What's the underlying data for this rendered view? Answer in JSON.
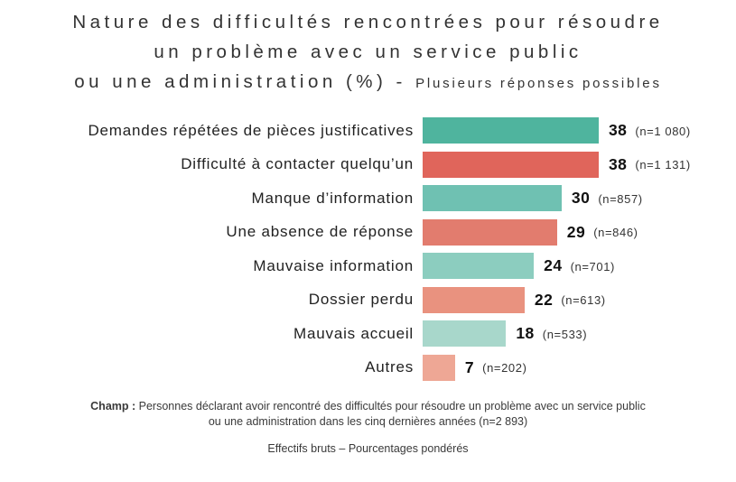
{
  "title": {
    "line1": "Nature des difficultés rencontrées pour résoudre",
    "line2": "un problème avec un service public",
    "line3_large": "ou une administration (%) -",
    "line3_small": "Plusieurs réponses possibles"
  },
  "chart_data": {
    "type": "bar",
    "orientation": "horizontal",
    "title": "Nature des difficultés rencontrées pour résoudre un problème avec un service public ou une administration (%)",
    "subtitle": "Plusieurs réponses possibles",
    "xlabel": "",
    "ylabel": "",
    "xlim": [
      0,
      38
    ],
    "grid": false,
    "legend": false,
    "value_unit": "percent",
    "categories": [
      "Demandes répétées de pièces justificatives",
      "Difficulté à contacter quelqu’un",
      "Manque d’information",
      "Une absence de réponse",
      "Mauvaise information",
      "Dossier perdu",
      "Mauvais accueil",
      "Autres"
    ],
    "values": [
      38,
      38,
      30,
      29,
      24,
      22,
      18,
      7
    ],
    "n_labels": [
      "(n=1 080)",
      "(n=1 131)",
      "(n=857)",
      "(n=846)",
      "(n=701)",
      "(n=613)",
      "(n=533)",
      "(n=202)"
    ],
    "bar_colors": [
      "#4FB49E",
      "#E0655B",
      "#6FC1B2",
      "#E27C6E",
      "#8CCDBF",
      "#E9927F",
      "#A8D7CB",
      "#EEA795"
    ],
    "rows": [
      {
        "label": "Demandes répétées de pièces justificatives",
        "value": "38",
        "n": "(n=1 080)",
        "color": "#4FB49E"
      },
      {
        "label": "Difficulté à contacter quelqu’un",
        "value": "38",
        "n": "(n=1 131)",
        "color": "#E0655B"
      },
      {
        "label": "Manque d’information",
        "value": "30",
        "n": "(n=857)",
        "color": "#6FC1B2"
      },
      {
        "label": "Une absence de réponse",
        "value": "29",
        "n": "(n=846)",
        "color": "#E27C6E"
      },
      {
        "label": "Mauvaise information",
        "value": "24",
        "n": "(n=701)",
        "color": "#8CCDBF"
      },
      {
        "label": "Dossier perdu",
        "value": "22",
        "n": "(n=613)",
        "color": "#E9927F"
      },
      {
        "label": "Mauvais accueil",
        "value": "18",
        "n": "(n=533)",
        "color": "#A8D7CB"
      },
      {
        "label": "Autres",
        "value": "7",
        "n": "(n=202)",
        "color": "#EEA795"
      }
    ]
  },
  "footer": {
    "champ_label": "Champ :",
    "champ_line1": "Personnes déclarant avoir rencontré des difficultés pour résoudre un problème avec un service public",
    "champ_line2": "ou une administration dans les cinq dernières années (n=2 893)",
    "note": "Effectifs bruts – Pourcentages pondérés"
  }
}
